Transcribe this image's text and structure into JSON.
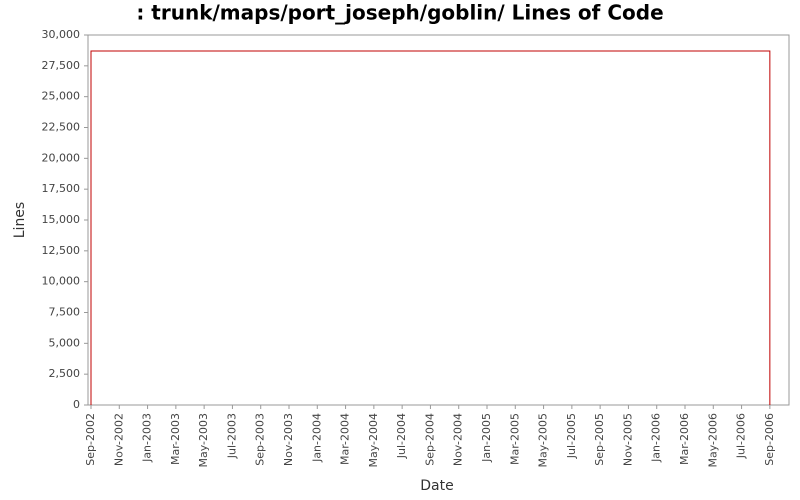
{
  "chart_data": {
    "type": "line",
    "title": ": trunk/maps/port_joseph/goblin/ Lines of Code",
    "x_label": "Date",
    "y_label": "Lines",
    "x": [
      "2002-09",
      "2002-09",
      "2006-09",
      "2006-09"
    ],
    "series": [
      {
        "name": "Lines",
        "color": "#c00000",
        "values": [
          0,
          28700,
          28700,
          0
        ]
      }
    ],
    "xlim": [
      "2002-09",
      "2006-10"
    ],
    "xticks": [
      {
        "value": "2002-09",
        "label": "Sep-2002"
      },
      {
        "value": "2002-11",
        "label": "Nov-2002"
      },
      {
        "value": "2003-01",
        "label": "Jan-2003"
      },
      {
        "value": "2003-03",
        "label": "Mar-2003"
      },
      {
        "value": "2003-05",
        "label": "May-2003"
      },
      {
        "value": "2003-07",
        "label": "Jul-2003"
      },
      {
        "value": "2003-09",
        "label": "Sep-2003"
      },
      {
        "value": "2003-11",
        "label": "Nov-2003"
      },
      {
        "value": "2004-01",
        "label": "Jan-2004"
      },
      {
        "value": "2004-03",
        "label": "Mar-2004"
      },
      {
        "value": "2004-05",
        "label": "May-2004"
      },
      {
        "value": "2004-07",
        "label": "Jul-2004"
      },
      {
        "value": "2004-09",
        "label": "Sep-2004"
      },
      {
        "value": "2004-11",
        "label": "Nov-2004"
      },
      {
        "value": "2005-01",
        "label": "Jan-2005"
      },
      {
        "value": "2005-03",
        "label": "Mar-2005"
      },
      {
        "value": "2005-05",
        "label": "May-2005"
      },
      {
        "value": "2005-07",
        "label": "Jul-2005"
      },
      {
        "value": "2005-09",
        "label": "Sep-2005"
      },
      {
        "value": "2005-11",
        "label": "Nov-2005"
      },
      {
        "value": "2006-01",
        "label": "Jan-2006"
      },
      {
        "value": "2006-03",
        "label": "Mar-2006"
      },
      {
        "value": "2006-05",
        "label": "May-2006"
      },
      {
        "value": "2006-07",
        "label": "Jul-2006"
      },
      {
        "value": "2006-09",
        "label": "Sep-2006"
      }
    ],
    "ylim": [
      0,
      30000
    ],
    "yticks": [
      0,
      {
        "value": 2500,
        "label": "2,500"
      },
      {
        "value": 5000,
        "label": "5,000"
      },
      {
        "value": 7500,
        "label": "7,500"
      },
      {
        "value": 10000,
        "label": "10,000"
      },
      {
        "value": 12500,
        "label": "12,500"
      },
      {
        "value": 15000,
        "label": "15,000"
      },
      {
        "value": 17500,
        "label": "17,500"
      },
      {
        "value": 20000,
        "label": "20,000"
      },
      {
        "value": 22500,
        "label": "22,500"
      },
      {
        "value": 25000,
        "label": "25,000"
      },
      {
        "value": 27500,
        "label": "27,500"
      },
      {
        "value": 30000,
        "label": "30,000"
      }
    ],
    "grid": false
  }
}
